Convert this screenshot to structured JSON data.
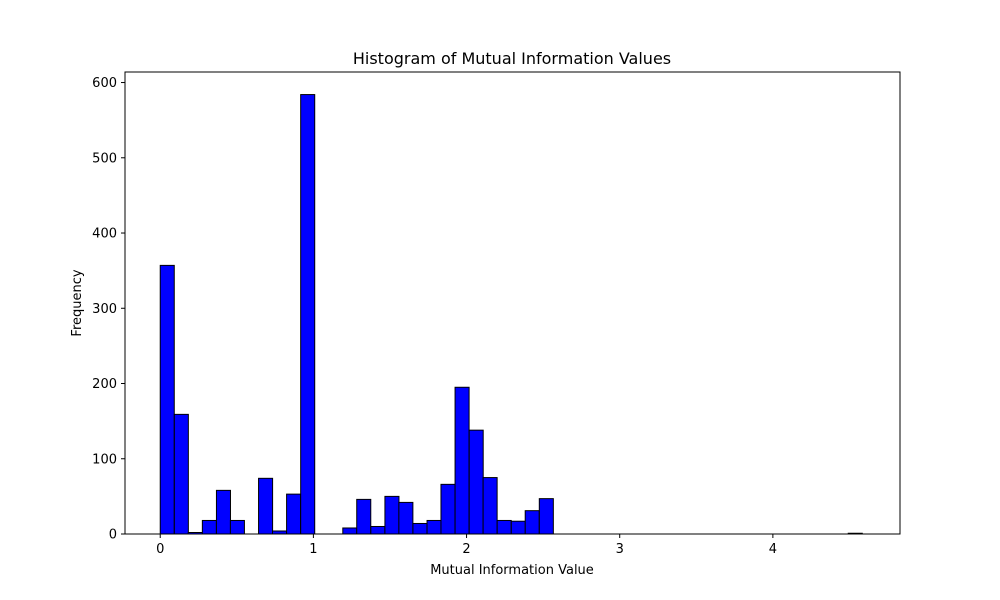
{
  "chart_data": {
    "type": "bar",
    "subtype": "histogram",
    "title": "Histogram of Mutual Information Values",
    "xlabel": "Mutual Information Value",
    "ylabel": "Frequency",
    "xlim": [
      -0.23,
      4.83
    ],
    "ylim": [
      0,
      614
    ],
    "xticks": [
      0,
      1,
      2,
      3,
      4
    ],
    "yticks": [
      0,
      100,
      200,
      300,
      400,
      500,
      600
    ],
    "bin_width": 0.0917,
    "bar_color": "#0000ff",
    "edge_color": "#000000",
    "grid": false,
    "bins": [
      {
        "x0": 0.0,
        "count": 357
      },
      {
        "x0": 0.092,
        "count": 159
      },
      {
        "x0": 0.183,
        "count": 2
      },
      {
        "x0": 0.275,
        "count": 18
      },
      {
        "x0": 0.367,
        "count": 58
      },
      {
        "x0": 0.458,
        "count": 18
      },
      {
        "x0": 0.55,
        "count": 0
      },
      {
        "x0": 0.642,
        "count": 74
      },
      {
        "x0": 0.733,
        "count": 4
      },
      {
        "x0": 0.825,
        "count": 53
      },
      {
        "x0": 0.917,
        "count": 584
      },
      {
        "x0": 1.008,
        "count": 0
      },
      {
        "x0": 1.1,
        "count": 0
      },
      {
        "x0": 1.192,
        "count": 8
      },
      {
        "x0": 1.283,
        "count": 46
      },
      {
        "x0": 1.375,
        "count": 10
      },
      {
        "x0": 1.467,
        "count": 50
      },
      {
        "x0": 1.558,
        "count": 42
      },
      {
        "x0": 1.65,
        "count": 14
      },
      {
        "x0": 1.742,
        "count": 18
      },
      {
        "x0": 1.833,
        "count": 66
      },
      {
        "x0": 1.925,
        "count": 195
      },
      {
        "x0": 2.017,
        "count": 138
      },
      {
        "x0": 2.108,
        "count": 75
      },
      {
        "x0": 2.2,
        "count": 18
      },
      {
        "x0": 2.292,
        "count": 17
      },
      {
        "x0": 2.383,
        "count": 31
      },
      {
        "x0": 2.475,
        "count": 47
      },
      {
        "x0": 4.492,
        "count": 1
      }
    ]
  }
}
